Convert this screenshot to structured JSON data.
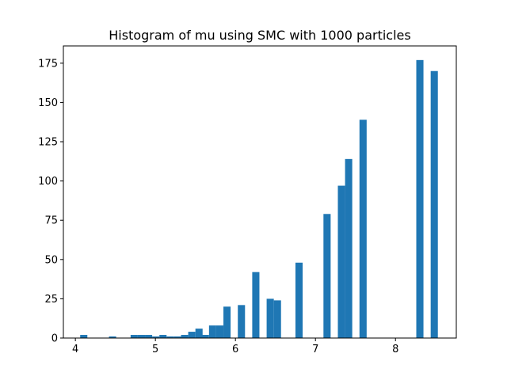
{
  "chart_data": {
    "type": "bar",
    "title": "Histogram of mu using SMC with 1000 particles",
    "xlabel": "",
    "ylabel": "",
    "xlim": [
      3.85,
      8.76
    ],
    "ylim": [
      0,
      186
    ],
    "xticks": [
      "4",
      "5",
      "6",
      "7",
      "8"
    ],
    "xtick_values": [
      4,
      5,
      6,
      7,
      8
    ],
    "yticks": [
      "0",
      "25",
      "50",
      "75",
      "100",
      "125",
      "150",
      "175"
    ],
    "ytick_values": [
      0,
      25,
      50,
      75,
      100,
      125,
      150,
      175
    ],
    "bin_width": 0.0897,
    "color": "#1f77b4",
    "bins": [
      {
        "x0": 4.06,
        "count": 2
      },
      {
        "x0": 4.42,
        "count": 1
      },
      {
        "x0": 4.69,
        "count": 2
      },
      {
        "x0": 4.78,
        "count": 2
      },
      {
        "x0": 4.87,
        "count": 2
      },
      {
        "x0": 4.96,
        "count": 1
      },
      {
        "x0": 5.05,
        "count": 2
      },
      {
        "x0": 5.14,
        "count": 1
      },
      {
        "x0": 5.23,
        "count": 1
      },
      {
        "x0": 5.32,
        "count": 2
      },
      {
        "x0": 5.41,
        "count": 4
      },
      {
        "x0": 5.5,
        "count": 6
      },
      {
        "x0": 5.58,
        "count": 2
      },
      {
        "x0": 5.67,
        "count": 8
      },
      {
        "x0": 5.76,
        "count": 8
      },
      {
        "x0": 5.85,
        "count": 20
      },
      {
        "x0": 6.03,
        "count": 21
      },
      {
        "x0": 6.21,
        "count": 42
      },
      {
        "x0": 6.39,
        "count": 25
      },
      {
        "x0": 6.48,
        "count": 24
      },
      {
        "x0": 6.75,
        "count": 48
      },
      {
        "x0": 7.1,
        "count": 79
      },
      {
        "x0": 7.28,
        "count": 97
      },
      {
        "x0": 7.37,
        "count": 114
      },
      {
        "x0": 7.55,
        "count": 139
      },
      {
        "x0": 8.26,
        "count": 177
      },
      {
        "x0": 8.44,
        "count": 170
      }
    ]
  }
}
